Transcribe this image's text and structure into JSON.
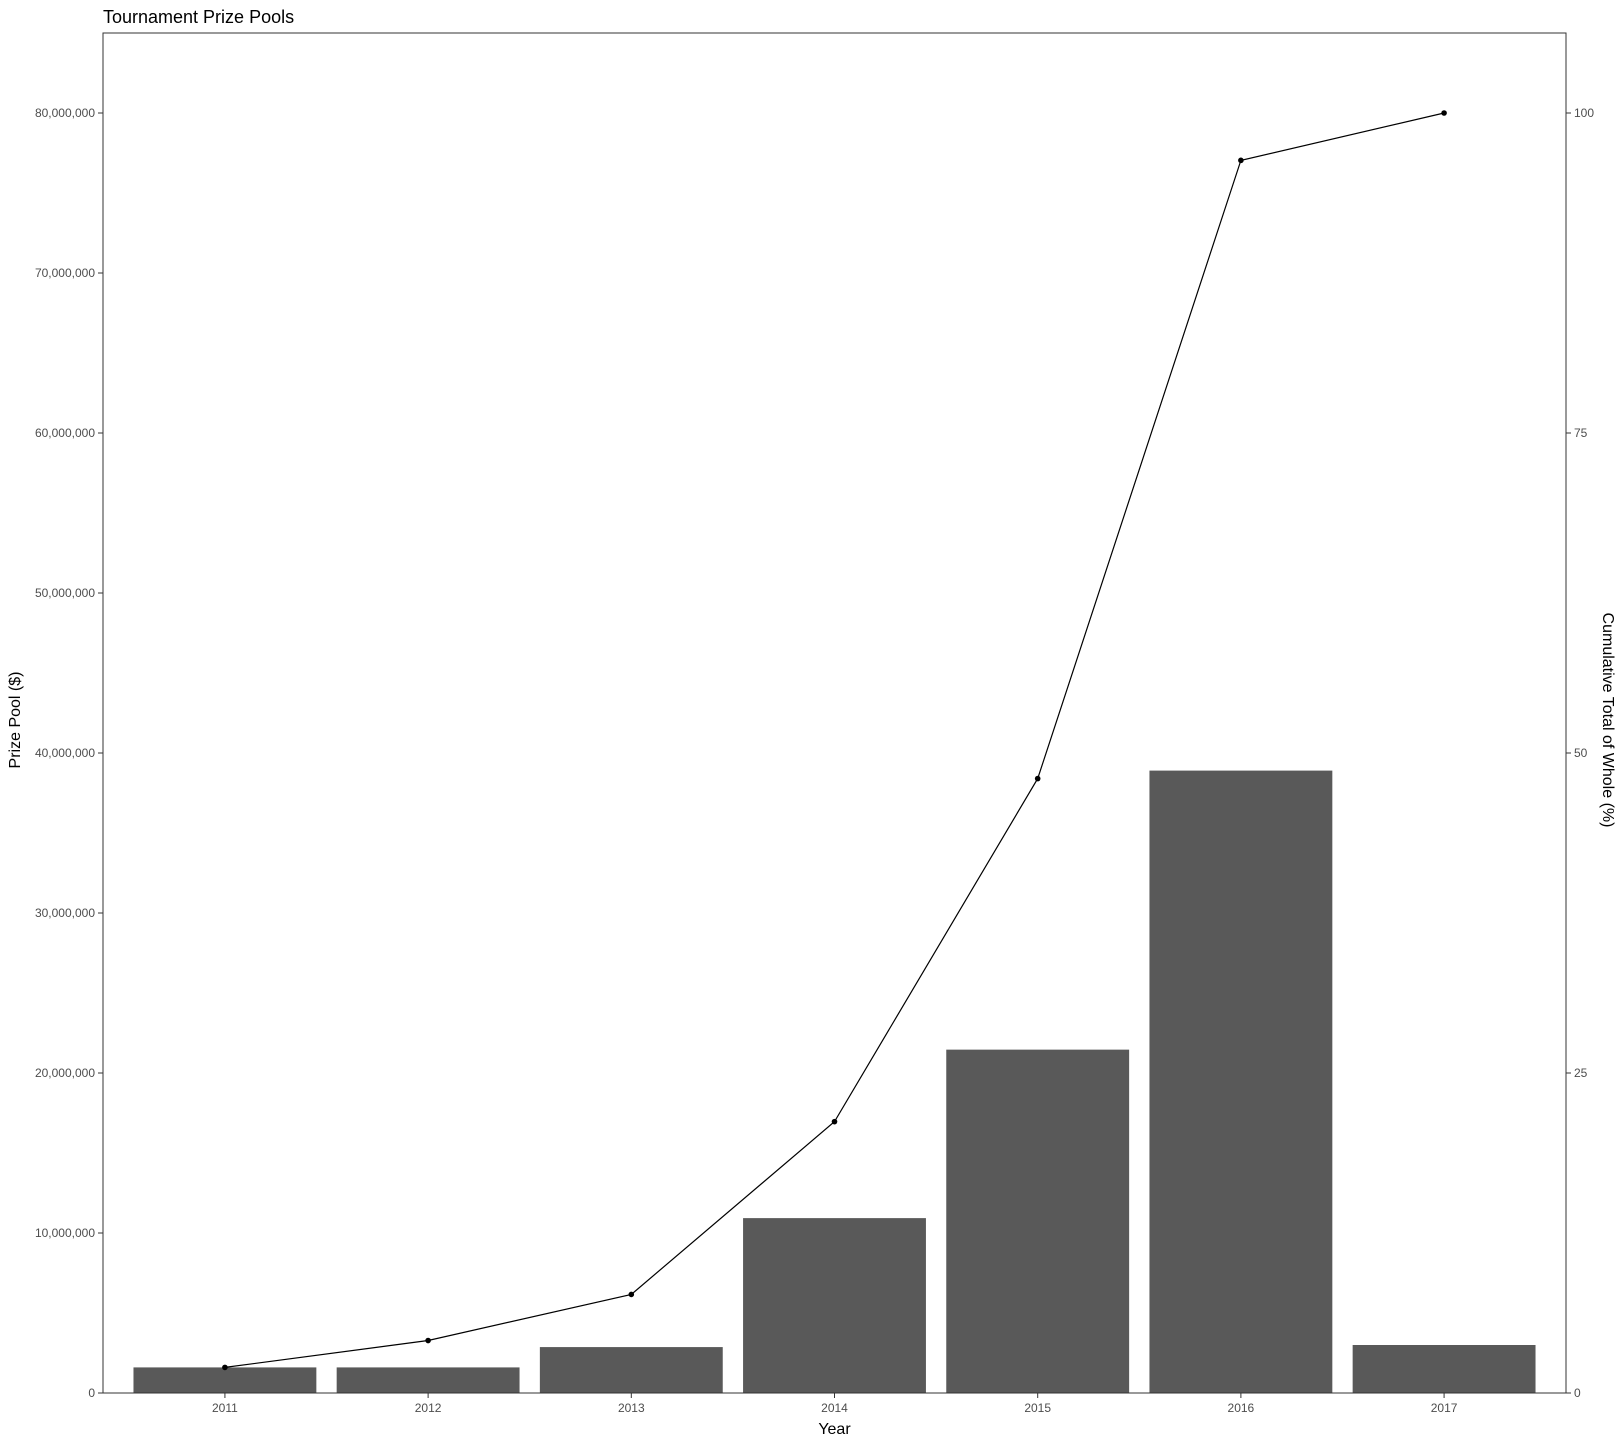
{
  "chart_data": {
    "type": "bar",
    "title": "Tournament Prize Pools",
    "xlabel": "Year",
    "ylabel": "Prize Pool ($)",
    "y2label": "Cumulative Total of Whole (%)",
    "categories": [
      "2011",
      "2012",
      "2013",
      "2014",
      "2015",
      "2016",
      "2017"
    ],
    "series": [
      {
        "type": "bar",
        "axis": "left",
        "values": [
          1600000,
          1600000,
          2870000,
          10930000,
          21460000,
          38900000,
          3000000
        ]
      },
      {
        "type": "line",
        "axis": "right",
        "markers": true,
        "values": [
          2.0,
          4.1,
          7.7,
          21.2,
          48.0,
          96.3,
          100.0
        ]
      }
    ],
    "ylim": [
      0,
      85000000
    ],
    "y2lim": [
      0,
      106.25
    ],
    "yticks": [
      0,
      10000000,
      20000000,
      30000000,
      40000000,
      50000000,
      60000000,
      70000000,
      80000000
    ],
    "ytick_labels": [
      "0",
      "10,000,000",
      "20,000,000",
      "30,000,000",
      "40,000,000",
      "50,000,000",
      "60,000,000",
      "70,000,000",
      "80,000,000"
    ],
    "y2ticks": [
      0,
      25,
      50,
      75,
      100
    ],
    "y2tick_labels": [
      "0",
      "25",
      "50",
      "75",
      "100"
    ],
    "grid": false,
    "legend": "none",
    "colors": {
      "bar": "#595959",
      "line": "#000000",
      "axis": "#333333",
      "tick_text": "#4d4d4d"
    }
  }
}
